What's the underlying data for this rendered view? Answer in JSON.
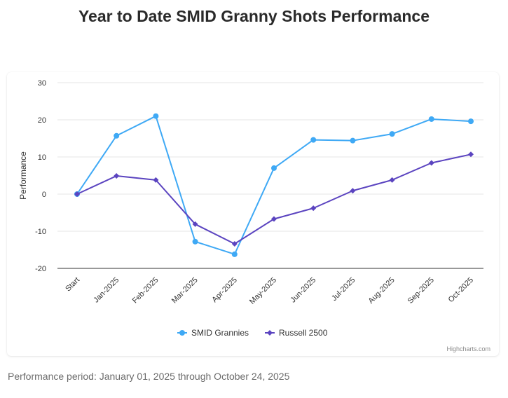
{
  "header": {
    "title": "Year to Date SMID Granny Shots Performance"
  },
  "chart_data": {
    "type": "line",
    "title": "",
    "ylabel": "Performance",
    "xlabel": "",
    "categories": [
      "Start",
      "Jan-2025",
      "Feb-2025",
      "Mar-2025",
      "Apr-2025",
      "May-2025",
      "Jun-2025",
      "Jul-2025",
      "Aug-2025",
      "Sep-2025",
      "Oct-2025"
    ],
    "ylim": [
      -20,
      30
    ],
    "yticks": [
      -20,
      -10,
      0,
      10,
      20,
      30
    ],
    "grid": true,
    "legend_position": "bottom-center",
    "series": [
      {
        "name": "SMID Grannies",
        "color": "#3fa9f5",
        "marker": "circle",
        "values": [
          0,
          15.7,
          21.0,
          -12.8,
          -16.2,
          7.0,
          14.6,
          14.4,
          16.2,
          20.2,
          19.6
        ]
      },
      {
        "name": "Russell 2500",
        "color": "#5b44c0",
        "marker": "diamond",
        "values": [
          0,
          4.9,
          3.8,
          -8.1,
          -13.4,
          -6.7,
          -3.8,
          0.9,
          3.8,
          8.4,
          10.7
        ]
      }
    ],
    "credits": "Highcharts.com"
  },
  "footer": {
    "note": "Performance period: January 01, 2025 through October 24, 2025"
  }
}
